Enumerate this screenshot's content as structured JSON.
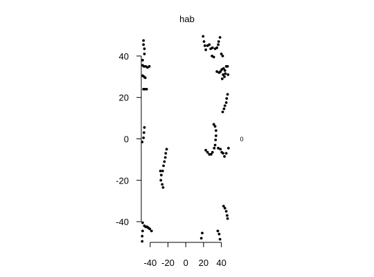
{
  "chart_data": {
    "type": "scatter",
    "title": "hab",
    "xlabel": "",
    "ylabel": "",
    "xlim": [
      -50,
      52
    ],
    "ylim": [
      -50,
      50
    ],
    "x_ticks": [
      -40,
      -20,
      0,
      20,
      40
    ],
    "x_tick_labels": [
      "-40",
      "-20",
      "0",
      "20",
      "40"
    ],
    "y_ticks": [
      -40,
      -20,
      0,
      20,
      40
    ],
    "y_tick_labels": [
      "-40",
      "-20",
      "0",
      "20",
      "40"
    ],
    "side_label": "0",
    "grid": false,
    "legend": "none",
    "marker_color": "#000000",
    "points": [
      [
        -47.5,
        47.5
      ],
      [
        -47.5,
        45.5
      ],
      [
        -46.5,
        43.5
      ],
      [
        -46.5,
        41.0
      ],
      [
        -48.5,
        38.0
      ],
      [
        -48.5,
        35.5
      ],
      [
        -47.0,
        35.0
      ],
      [
        -45.0,
        35.0
      ],
      [
        -43.0,
        34.5
      ],
      [
        -41.0,
        35.0
      ],
      [
        -48.5,
        30.5
      ],
      [
        -47.0,
        30.0
      ],
      [
        -45.5,
        29.5
      ],
      [
        -47.5,
        24.0
      ],
      [
        -46.0,
        24.0
      ],
      [
        -44.0,
        24.0
      ],
      [
        -46.5,
        5.5
      ],
      [
        -47.0,
        3.0
      ],
      [
        -47.5,
        0.5
      ],
      [
        -49.0,
        -1.5
      ],
      [
        -48.5,
        -40.5
      ],
      [
        -46.5,
        -42.0
      ],
      [
        -45.0,
        -42.5
      ],
      [
        -43.5,
        -42.5
      ],
      [
        -42.0,
        -43.0
      ],
      [
        -40.5,
        -43.5
      ],
      [
        -38.5,
        -44.5
      ],
      [
        -48.5,
        -44.5
      ],
      [
        -49.0,
        -47.0
      ],
      [
        -49.0,
        -49.5
      ],
      [
        -21.5,
        -5.0
      ],
      [
        -22.5,
        -7.0
      ],
      [
        -23.0,
        -9.0
      ],
      [
        -24.0,
        -11.0
      ],
      [
        -25.0,
        -13.0
      ],
      [
        -26.0,
        -15.5
      ],
      [
        -27.5,
        -17.5
      ],
      [
        -28.5,
        -15.5
      ],
      [
        -28.0,
        -20.0
      ],
      [
        -26.5,
        -22.0
      ],
      [
        -25.5,
        -23.5
      ],
      [
        19.5,
        49.5
      ],
      [
        20.5,
        47.0
      ],
      [
        21.5,
        45.0
      ],
      [
        22.5,
        43.0
      ],
      [
        24.5,
        45.0
      ],
      [
        26.5,
        45.5
      ],
      [
        28.0,
        43.5
      ],
      [
        30.0,
        44.0
      ],
      [
        29.5,
        40.0
      ],
      [
        31.5,
        39.5
      ],
      [
        33.0,
        43.5
      ],
      [
        35.0,
        44.0
      ],
      [
        36.5,
        45.5
      ],
      [
        37.0,
        47.0
      ],
      [
        38.5,
        49.0
      ],
      [
        40.0,
        41.0
      ],
      [
        41.5,
        40.0
      ],
      [
        35.0,
        32.5
      ],
      [
        37.5,
        32.0
      ],
      [
        39.0,
        32.5
      ],
      [
        40.5,
        33.5
      ],
      [
        42.5,
        34.0
      ],
      [
        44.0,
        33.0
      ],
      [
        45.5,
        35.0
      ],
      [
        44.5,
        31.5
      ],
      [
        42.0,
        31.0
      ],
      [
        47.0,
        35.0
      ],
      [
        47.5,
        31.0
      ],
      [
        41.0,
        29.0
      ],
      [
        43.5,
        30.0
      ],
      [
        47.0,
        21.5
      ],
      [
        46.0,
        19.5
      ],
      [
        45.5,
        17.5
      ],
      [
        44.0,
        16.0
      ],
      [
        43.0,
        14.5
      ],
      [
        41.5,
        13.0
      ],
      [
        31.5,
        7.0
      ],
      [
        33.0,
        6.0
      ],
      [
        34.0,
        4.0
      ],
      [
        34.0,
        1.5
      ],
      [
        33.5,
        -0.5
      ],
      [
        33.0,
        -3.0
      ],
      [
        32.0,
        -4.5
      ],
      [
        30.0,
        -6.5
      ],
      [
        28.5,
        -7.5
      ],
      [
        26.5,
        -7.5
      ],
      [
        24.5,
        -6.5
      ],
      [
        22.5,
        -5.5
      ],
      [
        36.5,
        -4.5
      ],
      [
        39.0,
        -5.0
      ],
      [
        40.5,
        -6.5
      ],
      [
        42.0,
        -7.0
      ],
      [
        43.5,
        -8.5
      ],
      [
        45.5,
        -7.0
      ],
      [
        48.0,
        -4.5
      ],
      [
        42.5,
        -32.5
      ],
      [
        44.0,
        -33.5
      ],
      [
        45.5,
        -35.0
      ],
      [
        46.5,
        -37.0
      ],
      [
        47.0,
        -38.5
      ],
      [
        36.0,
        -44.5
      ],
      [
        37.5,
        -46.0
      ],
      [
        38.5,
        -48.5
      ],
      [
        18.5,
        -45.5
      ],
      [
        17.5,
        -48.0
      ]
    ]
  }
}
